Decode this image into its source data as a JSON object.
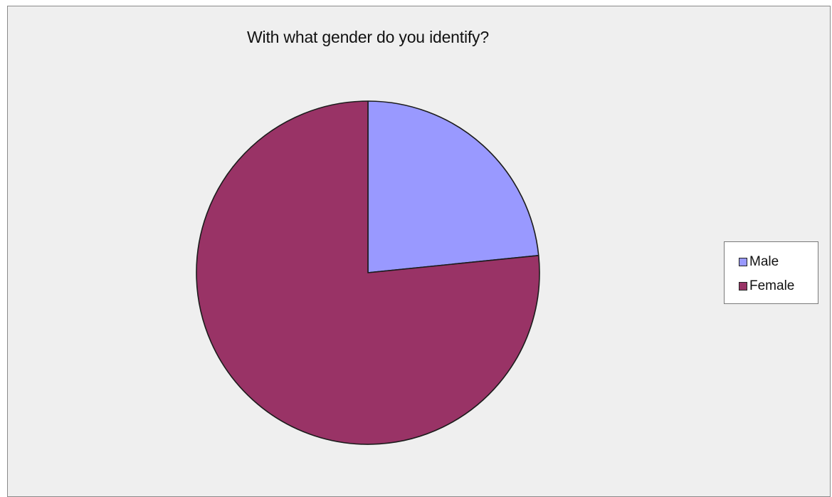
{
  "chart_data": {
    "type": "pie",
    "title": "With what gender do you identify?",
    "categories": [
      "Male",
      "Female"
    ],
    "values": [
      23.4,
      76.6
    ],
    "colors": [
      "#9999ff",
      "#993366"
    ],
    "legend_position": "right"
  }
}
